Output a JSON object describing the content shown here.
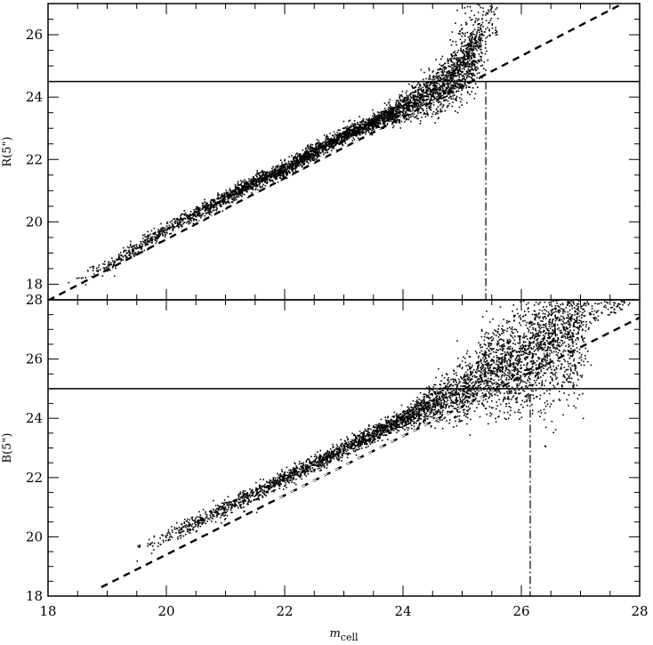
{
  "chart_data": [
    {
      "panel": "top",
      "type": "scatter",
      "title": "",
      "xlabel": "",
      "ylabel": "R(5\")",
      "xlim": [
        18,
        28
      ],
      "ylim": [
        17.5,
        27
      ],
      "xticks": [
        "18",
        "20",
        "22",
        "24",
        "26",
        "28"
      ],
      "yticks": [
        "18",
        "20",
        "22",
        "24",
        "26"
      ],
      "series": [
        {
          "type": "scatter",
          "description": "m_cell vs R magnitude; tight linear relation widening at the faint end",
          "x": [
            18.5,
            19.0,
            19.5,
            20.0,
            20.5,
            21.0,
            21.5,
            22.0,
            22.5,
            23.0,
            23.5,
            24.0,
            24.3,
            24.6,
            24.9,
            25.1,
            25.3
          ],
          "y": [
            18.2,
            18.6,
            19.2,
            19.8,
            20.3,
            20.8,
            21.3,
            21.7,
            22.3,
            22.8,
            23.2,
            23.7,
            24.0,
            24.3,
            24.7,
            25.2,
            25.7
          ]
        },
        {
          "type": "line",
          "style": "dashed",
          "description": "linear fit",
          "x": [
            18,
            28
          ],
          "y": [
            17.48,
            27.28
          ]
        }
      ],
      "hline": 24.5,
      "vline": {
        "x": 25.4,
        "ymax": 24.5
      }
    },
    {
      "panel": "bottom",
      "type": "scatter",
      "title": "",
      "xlabel": "m_cell",
      "ylabel": "B(5\")",
      "xlim": [
        18,
        28
      ],
      "ylim": [
        18,
        28
      ],
      "xticks": [
        "18",
        "20",
        "22",
        "24",
        "26",
        "28"
      ],
      "yticks": [
        "18",
        "20",
        "22",
        "24",
        "26",
        "28"
      ],
      "series": [
        {
          "type": "scatter",
          "description": "m_cell vs B magnitude; tight linear relation widening strongly at the faint end",
          "x": [
            19.5,
            20.0,
            20.5,
            21.0,
            21.5,
            22.0,
            22.5,
            23.0,
            23.5,
            24.0,
            24.5,
            25.0,
            25.5,
            26.0,
            26.5,
            27.0
          ],
          "y": [
            19.6,
            20.0,
            20.5,
            21.0,
            21.5,
            22.0,
            22.5,
            23.0,
            23.5,
            24.0,
            24.5,
            25.0,
            25.5,
            26.0,
            26.5,
            27.0
          ]
        },
        {
          "type": "line",
          "style": "dashed",
          "description": "linear fit",
          "x": [
            18.9,
            28
          ],
          "y": [
            18.3,
            27.4
          ]
        }
      ],
      "hline": 25.0,
      "vline": {
        "x": 26.15,
        "ymax": 24.8
      }
    }
  ]
}
